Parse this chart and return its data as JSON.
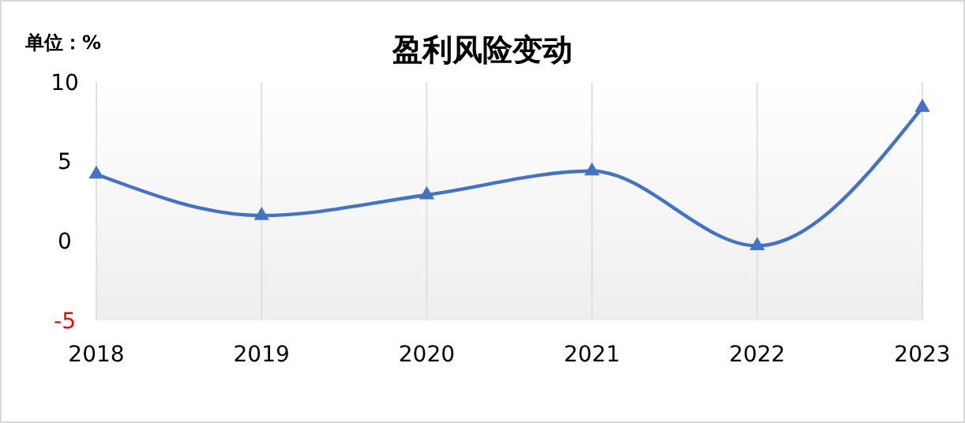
{
  "chart_data": {
    "type": "line",
    "title": "盈利风险变动",
    "ylabel": "单位：%",
    "categories": [
      "2018",
      "2019",
      "2020",
      "2021",
      "2022",
      "2023"
    ],
    "series": [
      {
        "color": "#4472c4",
        "values": [
          4.2,
          1.6,
          2.9,
          4.4,
          -0.3,
          8.4
        ]
      }
    ],
    "ylim": [
      -5,
      10
    ],
    "yticks": [
      -5,
      0,
      5,
      10
    ],
    "grid": "x",
    "marker": "triangle"
  }
}
